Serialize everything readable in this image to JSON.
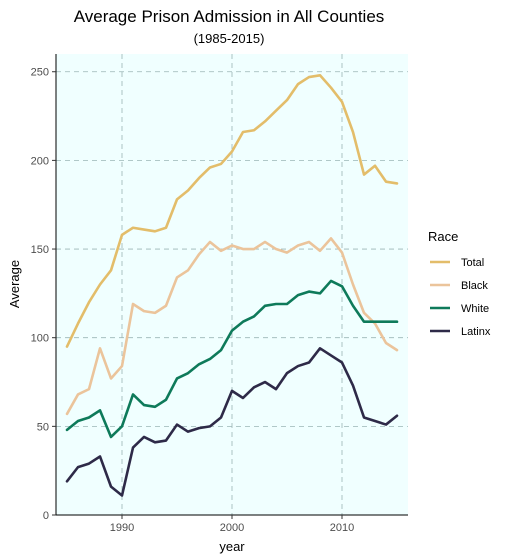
{
  "chart_data": {
    "type": "line",
    "title": "Average Prison Admission in All Counties",
    "subtitle": "(1985-2015)",
    "xlabel": "year",
    "ylabel": "Average",
    "xlim": [
      1984,
      2016
    ],
    "ylim": [
      0,
      260
    ],
    "x_ticks": [
      1990,
      2000,
      2010
    ],
    "y_ticks": [
      0,
      50,
      100,
      150,
      200,
      250
    ],
    "grid": true,
    "background": "#f0ffff",
    "legend": {
      "title": "Race",
      "position": "right"
    },
    "x": [
      1985,
      1986,
      1987,
      1988,
      1989,
      1990,
      1991,
      1992,
      1993,
      1994,
      1995,
      1996,
      1997,
      1998,
      1999,
      2000,
      2001,
      2002,
      2003,
      2004,
      2005,
      2006,
      2007,
      2008,
      2009,
      2010,
      2011,
      2012,
      2013,
      2014,
      2015
    ],
    "series": [
      {
        "name": "Total",
        "color": "#e3bd6a",
        "values": [
          95,
          108,
          120,
          130,
          138,
          158,
          162,
          161,
          160,
          162,
          178,
          183,
          190,
          196,
          198,
          205,
          216,
          217,
          222,
          228,
          234,
          243,
          247,
          248,
          241,
          233,
          216,
          192,
          197,
          188,
          187
        ]
      },
      {
        "name": "Black",
        "color": "#ebc49b",
        "values": [
          57,
          68,
          71,
          94,
          77,
          84,
          119,
          115,
          114,
          118,
          134,
          138,
          147,
          154,
          149,
          152,
          150,
          150,
          154,
          150,
          148,
          152,
          154,
          149,
          156,
          148,
          130,
          114,
          108,
          97,
          93
        ]
      },
      {
        "name": "White",
        "color": "#0e7a5a",
        "values": [
          48,
          53,
          55,
          59,
          44,
          50,
          68,
          62,
          61,
          65,
          77,
          80,
          85,
          88,
          93,
          104,
          109,
          112,
          118,
          119,
          119,
          124,
          126,
          125,
          132,
          129,
          118,
          109,
          109,
          109,
          109
        ]
      },
      {
        "name": "Latinx",
        "color": "#2e2a48",
        "values": [
          19,
          27,
          29,
          33,
          16,
          11,
          38,
          44,
          41,
          42,
          51,
          47,
          49,
          50,
          55,
          70,
          66,
          72,
          75,
          71,
          80,
          84,
          86,
          94,
          90,
          86,
          73,
          55,
          53,
          51,
          56
        ]
      }
    ]
  }
}
